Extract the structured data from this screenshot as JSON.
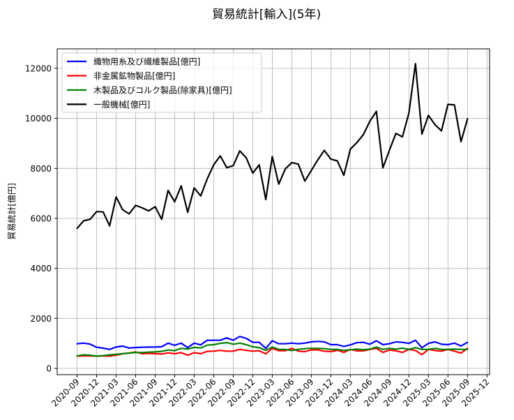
{
  "chart_data": {
    "type": "line",
    "title": "貿易統計[輸入](5年)",
    "xlabel": "",
    "ylabel": "貿易統計[億円]",
    "ylim": [
      -200,
      12700
    ],
    "yticks": [
      0,
      2000,
      4000,
      6000,
      8000,
      10000,
      12000
    ],
    "xtick_labels": [
      "2020-09",
      "2020-12",
      "2021-03",
      "2021-06",
      "2021-09",
      "2021-12",
      "2022-03",
      "2022-06",
      "2022-09",
      "2022-12",
      "2023-03",
      "2023-06",
      "2023-09",
      "2023-12",
      "2024-03",
      "2024-06",
      "2024-09",
      "2024-12",
      "2025-03",
      "2025-06",
      "2025-09",
      "2025-12"
    ],
    "grid": true,
    "legend_position": "upper left",
    "x": [
      "2020-09",
      "2020-10",
      "2020-11",
      "2020-12",
      "2021-01",
      "2021-02",
      "2021-03",
      "2021-04",
      "2021-05",
      "2021-06",
      "2021-07",
      "2021-08",
      "2021-09",
      "2021-10",
      "2021-11",
      "2021-12",
      "2022-01",
      "2022-02",
      "2022-03",
      "2022-04",
      "2022-05",
      "2022-06",
      "2022-07",
      "2022-08",
      "2022-09",
      "2022-10",
      "2022-11",
      "2022-12",
      "2023-01",
      "2023-02",
      "2023-03",
      "2023-04",
      "2023-05",
      "2023-06",
      "2023-07",
      "2023-08",
      "2023-09",
      "2023-10",
      "2023-11",
      "2023-12",
      "2024-01",
      "2024-02",
      "2024-03",
      "2024-04",
      "2024-05",
      "2024-06",
      "2024-07",
      "2024-08",
      "2024-09",
      "2024-10",
      "2024-11",
      "2024-12",
      "2025-01",
      "2025-02",
      "2025-03",
      "2025-04",
      "2025-05",
      "2025-06",
      "2025-07",
      "2025-08",
      "2025-09"
    ],
    "series": [
      {
        "name": "織物用糸及び繊維製品[億円]",
        "color": "#0000ff",
        "values": [
          985,
          1010,
          970,
          845,
          810,
          760,
          855,
          890,
          815,
          835,
          845,
          850,
          855,
          865,
          1010,
          920,
          1010,
          830,
          1010,
          940,
          1125,
          1125,
          1125,
          1220,
          1125,
          1275,
          1200,
          1040,
          1040,
          800,
          1105,
          985,
          985,
          1010,
          985,
          1010,
          1060,
          1080,
          1060,
          950,
          950,
          875,
          940,
          1030,
          1040,
          965,
          1105,
          950,
          985,
          1060,
          1040,
          1000,
          1125,
          830,
          1000,
          1060,
          965,
          950,
          1010,
          895,
          1040
        ]
      },
      {
        "name": "非金属鉱物製品[億円]",
        "color": "#ff0000",
        "values": [
          490,
          500,
          500,
          490,
          500,
          490,
          525,
          585,
          610,
          660,
          585,
          600,
          585,
          575,
          620,
          585,
          630,
          525,
          630,
          585,
          680,
          690,
          720,
          690,
          690,
          760,
          720,
          690,
          705,
          580,
          800,
          705,
          705,
          800,
          690,
          670,
          740,
          740,
          690,
          670,
          725,
          640,
          760,
          700,
          700,
          760,
          800,
          640,
          735,
          700,
          640,
          760,
          715,
          550,
          760,
          715,
          690,
          760,
          690,
          610,
          800
        ]
      },
      {
        "name": "木製品及びコルク製品(除家具)[億円]",
        "color": "#008000",
        "values": [
          500,
          540,
          525,
          490,
          510,
          540,
          560,
          585,
          610,
          640,
          630,
          650,
          660,
          680,
          735,
          710,
          800,
          770,
          840,
          815,
          930,
          950,
          1000,
          1030,
          965,
          1010,
          950,
          865,
          830,
          720,
          855,
          760,
          760,
          715,
          760,
          790,
          800,
          800,
          790,
          760,
          760,
          720,
          745,
          770,
          745,
          770,
          855,
          760,
          800,
          770,
          810,
          760,
          830,
          760,
          760,
          800,
          760,
          760,
          770,
          760,
          760
        ]
      },
      {
        "name": "一般機械[億円]",
        "color": "#000000",
        "values": [
          5600,
          5900,
          5960,
          6270,
          6260,
          5700,
          6860,
          6350,
          6180,
          6520,
          6420,
          6300,
          6470,
          5960,
          7120,
          6660,
          7300,
          6240,
          7220,
          6900,
          7580,
          8140,
          8500,
          8030,
          8110,
          8700,
          8420,
          7810,
          8140,
          6750,
          8470,
          7370,
          7980,
          8230,
          8170,
          7490,
          7920,
          8340,
          8720,
          8370,
          8300,
          7720,
          8770,
          9030,
          9350,
          9890,
          10280,
          8020,
          8720,
          9400,
          9260,
          10210,
          12190,
          9370,
          10120,
          9750,
          9500,
          10560,
          10540,
          9070,
          9980
        ]
      }
    ]
  }
}
